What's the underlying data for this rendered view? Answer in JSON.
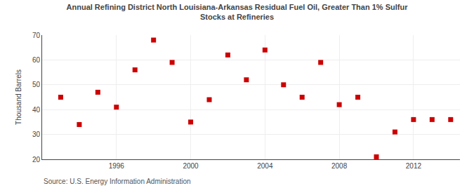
{
  "chart_data": {
    "type": "scatter",
    "title": "Annual Refining District North Louisiana-Arkansas Residual Fuel Oil, Greater Than 1% Sulfur",
    "subtitle": "Stocks at Refineries",
    "y_label": "Thousand Barrels",
    "annotations": [
      "Source: U.S. Energy Information Administration"
    ],
    "x": [
      1993,
      1994,
      1995,
      1996,
      1997,
      1998,
      1999,
      2000,
      2001,
      2002,
      2003,
      2004,
      2005,
      2006,
      2007,
      2008,
      2009,
      2010,
      2011,
      2012,
      2013,
      2014
    ],
    "values": [
      45,
      34,
      47,
      41,
      56,
      68,
      59,
      35,
      44,
      62,
      52,
      64,
      50,
      45,
      59,
      42,
      45,
      21,
      31,
      36,
      36,
      36
    ],
    "color": "#cc0000",
    "marker": "square",
    "xlim": [
      1992,
      2014.5
    ],
    "ylim": [
      20,
      70
    ],
    "xticks": [
      1996,
      2000,
      2004,
      2008,
      2012
    ],
    "yticks": [
      20,
      30,
      40,
      50,
      60,
      70
    ],
    "grid": true
  }
}
